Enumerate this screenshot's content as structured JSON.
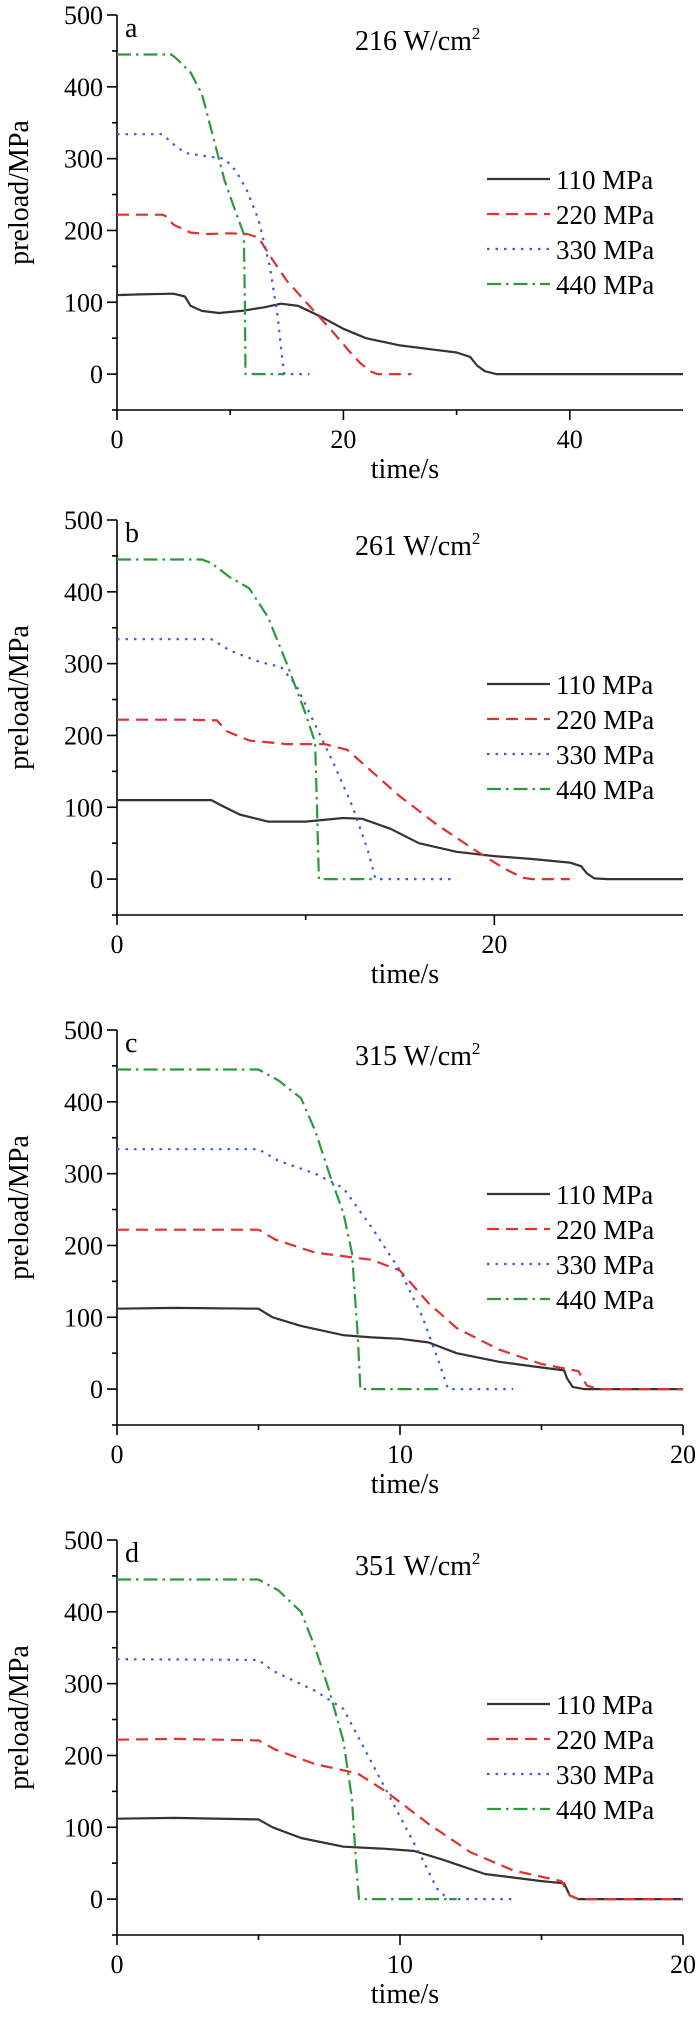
{
  "chart_data": [
    {
      "type": "line",
      "panel": "a",
      "title": "216 W/cm²",
      "title_base": "216 W/cm",
      "title_sup": "2",
      "xlabel": "time/s",
      "ylabel": "preload/MPa",
      "xlim": [
        0,
        50
      ],
      "ylim": [
        -50,
        500
      ],
      "xticks": [
        0,
        20,
        40
      ],
      "yticks": [
        0,
        100,
        200,
        300,
        400,
        500
      ],
      "legend_position": "right",
      "series": [
        {
          "name": "110 MPa",
          "color": "#3a3030",
          "dash": "solid",
          "points": [
            [
              0,
              110
            ],
            [
              2,
              111
            ],
            [
              5,
              112
            ],
            [
              6,
              108
            ],
            [
              6.5,
              95
            ],
            [
              7.5,
              88
            ],
            [
              9,
              85
            ],
            [
              11,
              88
            ],
            [
              13,
              93
            ],
            [
              14.5,
              98
            ],
            [
              16,
              95
            ],
            [
              18,
              80
            ],
            [
              20,
              63
            ],
            [
              22,
              50
            ],
            [
              25,
              40
            ],
            [
              28,
              34
            ],
            [
              30,
              30
            ],
            [
              31.2,
              24
            ],
            [
              31.8,
              12
            ],
            [
              32.5,
              4
            ],
            [
              33.5,
              0
            ],
            [
              40,
              0
            ],
            [
              50,
              0
            ]
          ]
        },
        {
          "name": "220 MPa",
          "color": "#e03030",
          "dash": "dashed",
          "points": [
            [
              0,
              222
            ],
            [
              4,
              222
            ],
            [
              4.3,
              220
            ],
            [
              5,
              208
            ],
            [
              6.5,
              197
            ],
            [
              8,
              195
            ],
            [
              10,
              196
            ],
            [
              11.5,
              195
            ],
            [
              12.5,
              190
            ],
            [
              13.5,
              165
            ],
            [
              15,
              130
            ],
            [
              17,
              95
            ],
            [
              19,
              60
            ],
            [
              20.5,
              32
            ],
            [
              21.5,
              15
            ],
            [
              22.5,
              3
            ],
            [
              23,
              0
            ],
            [
              26,
              0
            ]
          ]
        },
        {
          "name": "330 MPa",
          "color": "#3a5ae0",
          "dash": "dotted",
          "points": [
            [
              0,
              334
            ],
            [
              4,
              334
            ],
            [
              5,
              320
            ],
            [
              6,
              308
            ],
            [
              8,
              303
            ],
            [
              9.5,
              300
            ],
            [
              10.5,
              283
            ],
            [
              11.5,
              255
            ],
            [
              12.5,
              215
            ],
            [
              13.5,
              150
            ],
            [
              14.2,
              80
            ],
            [
              14.6,
              20
            ],
            [
              14.8,
              0
            ],
            [
              17,
              0
            ]
          ]
        },
        {
          "name": "440 MPa",
          "color": "#2a9a3a",
          "dash": "dashdot",
          "points": [
            [
              0,
              445
            ],
            [
              4.8,
              445
            ],
            [
              5.2,
              440
            ],
            [
              6.5,
              420
            ],
            [
              7.5,
              390
            ],
            [
              8.5,
              330
            ],
            [
              9.5,
              270
            ],
            [
              10.5,
              225
            ],
            [
              11.2,
              195
            ],
            [
              11.3,
              100
            ],
            [
              11.35,
              0
            ],
            [
              14.8,
              0
            ]
          ]
        }
      ]
    },
    {
      "type": "line",
      "panel": "b",
      "title": "261 W/cm²",
      "title_base": "261 W/cm",
      "title_sup": "2",
      "xlabel": "time/s",
      "ylabel": "preload/MPa",
      "xlim": [
        0,
        30
      ],
      "ylim": [
        -50,
        500
      ],
      "xticks": [
        0,
        20
      ],
      "yticks": [
        0,
        100,
        200,
        300,
        400,
        500
      ],
      "legend_position": "right",
      "series": [
        {
          "name": "110 MPa",
          "color": "#3a3030",
          "dash": "solid",
          "points": [
            [
              0,
              110
            ],
            [
              5,
              110
            ],
            [
              5.5,
              103
            ],
            [
              6.5,
              90
            ],
            [
              8,
              80
            ],
            [
              10,
              80
            ],
            [
              12,
              85
            ],
            [
              13,
              84
            ],
            [
              14.5,
              70
            ],
            [
              16,
              50
            ],
            [
              18,
              38
            ],
            [
              20,
              32
            ],
            [
              22,
              28
            ],
            [
              24,
              23
            ],
            [
              24.6,
              18
            ],
            [
              24.9,
              8
            ],
            [
              25.3,
              1
            ],
            [
              26,
              0
            ],
            [
              30,
              0
            ]
          ]
        },
        {
          "name": "220 MPa",
          "color": "#e03030",
          "dash": "dashed",
          "points": [
            [
              0,
              222
            ],
            [
              4,
              222
            ],
            [
              5.3,
              221
            ],
            [
              5.8,
              206
            ],
            [
              7,
              193
            ],
            [
              9,
              188
            ],
            [
              11,
              188
            ],
            [
              12.2,
              180
            ],
            [
              13.5,
              150
            ],
            [
              15,
              115
            ],
            [
              17,
              75
            ],
            [
              19,
              40
            ],
            [
              20.5,
              15
            ],
            [
              21.5,
              2
            ],
            [
              22,
              0
            ],
            [
              24,
              0
            ]
          ]
        },
        {
          "name": "330 MPa",
          "color": "#3a5ae0",
          "dash": "dotted",
          "points": [
            [
              0,
              334
            ],
            [
              5,
              334
            ],
            [
              6,
              318
            ],
            [
              7.5,
              303
            ],
            [
              8.7,
              295
            ],
            [
              9.5,
              270
            ],
            [
              10.5,
              215
            ],
            [
              11.5,
              160
            ],
            [
              12.5,
              100
            ],
            [
              13.3,
              40
            ],
            [
              13.7,
              0
            ],
            [
              18,
              0
            ]
          ]
        },
        {
          "name": "440 MPa",
          "color": "#2a9a3a",
          "dash": "dashdot",
          "points": [
            [
              0,
              445
            ],
            [
              4.5,
              445
            ],
            [
              5,
              440
            ],
            [
              6,
              420
            ],
            [
              7,
              405
            ],
            [
              8,
              365
            ],
            [
              9,
              300
            ],
            [
              10,
              230
            ],
            [
              10.5,
              190
            ],
            [
              10.6,
              100
            ],
            [
              10.7,
              0
            ],
            [
              13.7,
              0
            ]
          ]
        }
      ]
    },
    {
      "type": "line",
      "panel": "c",
      "title": "315 W/cm²",
      "title_base": "315 W/cm",
      "title_sup": "2",
      "xlabel": "time/s",
      "ylabel": "preload/MPa",
      "xlim": [
        0,
        20
      ],
      "ylim": [
        -50,
        500
      ],
      "xticks": [
        0,
        10,
        20
      ],
      "yticks": [
        0,
        100,
        200,
        300,
        400,
        500
      ],
      "legend_position": "right",
      "series": [
        {
          "name": "110 MPa",
          "color": "#3a3030",
          "dash": "solid",
          "points": [
            [
              0,
              112
            ],
            [
              2,
              113
            ],
            [
              5,
              112
            ],
            [
              5.5,
              100
            ],
            [
              6.5,
              88
            ],
            [
              8,
              75
            ],
            [
              9,
              72
            ],
            [
              10,
              70
            ],
            [
              11,
              65
            ],
            [
              12,
              50
            ],
            [
              13.5,
              38
            ],
            [
              15,
              30
            ],
            [
              15.8,
              26
            ],
            [
              15.9,
              15
            ],
            [
              16.1,
              3
            ],
            [
              16.5,
              0
            ],
            [
              20,
              0
            ]
          ]
        },
        {
          "name": "220 MPa",
          "color": "#e03030",
          "dash": "dashed",
          "points": [
            [
              0,
              222
            ],
            [
              5,
              222
            ],
            [
              5.6,
              208
            ],
            [
              7,
              190
            ],
            [
              9,
              180
            ],
            [
              10,
              165
            ],
            [
              11,
              120
            ],
            [
              12,
              85
            ],
            [
              13.5,
              55
            ],
            [
              15,
              35
            ],
            [
              16.3,
              25
            ],
            [
              16.6,
              5
            ],
            [
              17,
              0
            ],
            [
              20,
              0
            ]
          ]
        },
        {
          "name": "330 MPa",
          "color": "#3a5ae0",
          "dash": "dotted",
          "points": [
            [
              0,
              334
            ],
            [
              5,
              334
            ],
            [
              5.7,
              318
            ],
            [
              7,
              300
            ],
            [
              8,
              280
            ],
            [
              9,
              225
            ],
            [
              10,
              165
            ],
            [
              10.8,
              100
            ],
            [
              11.4,
              35
            ],
            [
              11.7,
              0
            ],
            [
              14,
              0
            ]
          ]
        },
        {
          "name": "440 MPa",
          "color": "#2a9a3a",
          "dash": "dashdot",
          "points": [
            [
              0,
              445
            ],
            [
              5,
              445
            ],
            [
              5.7,
              430
            ],
            [
              6.5,
              405
            ],
            [
              7,
              360
            ],
            [
              7.5,
              300
            ],
            [
              8,
              245
            ],
            [
              8.3,
              190
            ],
            [
              8.5,
              80
            ],
            [
              8.6,
              0
            ],
            [
              11.5,
              0
            ]
          ]
        }
      ]
    },
    {
      "type": "line",
      "panel": "d",
      "title": "351 W/cm²",
      "title_base": "351 W/cm",
      "title_sup": "2",
      "xlabel": "time/s",
      "ylabel": "preload/MPa",
      "xlim": [
        0,
        20
      ],
      "ylim": [
        -50,
        500
      ],
      "xticks": [
        0,
        10,
        20
      ],
      "yticks": [
        0,
        100,
        200,
        300,
        400,
        500
      ],
      "legend_position": "right",
      "series": [
        {
          "name": "110 MPa",
          "color": "#3a3030",
          "dash": "solid",
          "points": [
            [
              0,
              112
            ],
            [
              2,
              113
            ],
            [
              5,
              111
            ],
            [
              5.5,
              100
            ],
            [
              6.5,
              85
            ],
            [
              8,
              73
            ],
            [
              9.5,
              70
            ],
            [
              10.5,
              67
            ],
            [
              11.5,
              55
            ],
            [
              13,
              35
            ],
            [
              15,
              25
            ],
            [
              15.8,
              22
            ],
            [
              16,
              5
            ],
            [
              16.3,
              0
            ],
            [
              20,
              0
            ]
          ]
        },
        {
          "name": "220 MPa",
          "color": "#e03030",
          "dash": "dashed",
          "points": [
            [
              0,
              222
            ],
            [
              2,
              223
            ],
            [
              5,
              221
            ],
            [
              5.6,
              208
            ],
            [
              7,
              188
            ],
            [
              8.5,
              175
            ],
            [
              9.5,
              150
            ],
            [
              11,
              105
            ],
            [
              12.5,
              65
            ],
            [
              14,
              40
            ],
            [
              15.7,
              25
            ],
            [
              16,
              5
            ],
            [
              16.3,
              0
            ],
            [
              20,
              0
            ]
          ]
        },
        {
          "name": "330 MPa",
          "color": "#3a5ae0",
          "dash": "dotted",
          "points": [
            [
              0,
              334
            ],
            [
              5,
              333
            ],
            [
              5.5,
              318
            ],
            [
              7,
              290
            ],
            [
              8,
              265
            ],
            [
              9,
              190
            ],
            [
              10,
              115
            ],
            [
              10.8,
              55
            ],
            [
              11.3,
              15
            ],
            [
              11.7,
              0
            ],
            [
              14,
              0
            ]
          ]
        },
        {
          "name": "440 MPa",
          "color": "#2a9a3a",
          "dash": "dashdot",
          "points": [
            [
              0,
              445
            ],
            [
              5,
              445
            ],
            [
              5.7,
              430
            ],
            [
              6.5,
              400
            ],
            [
              7,
              350
            ],
            [
              7.5,
              290
            ],
            [
              8,
              220
            ],
            [
              8.3,
              140
            ],
            [
              8.45,
              50
            ],
            [
              8.55,
              0
            ],
            [
              12,
              0
            ]
          ]
        }
      ]
    }
  ]
}
